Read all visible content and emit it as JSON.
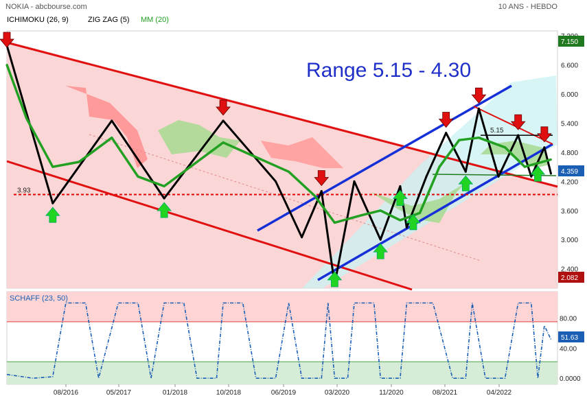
{
  "header": {
    "source": "NOKIA - abcbourse.com",
    "period": "10 ANS - HEBDO"
  },
  "legend": [
    {
      "label": "ICHIMOKU (26, 9)",
      "color": "#000000"
    },
    {
      "label": "ZIG ZAG (5)",
      "color": "#000000"
    },
    {
      "label": "MM (20)",
      "color": "#22a022"
    }
  ],
  "annotation": "Range 5.15 - 4.30",
  "chart_data": [
    {
      "type": "line",
      "title": "",
      "xlabel": "",
      "ylabel": "",
      "x_ticks": [
        "08/2016",
        "05/2017",
        "01/2018",
        "10/2018",
        "06/2019",
        "03/2020",
        "11/2020",
        "08/2021",
        "04/2022"
      ],
      "y_ticks": [
        "7.200",
        "6.600",
        "6.000",
        "5.400",
        "4.800",
        "4.200",
        "3.600",
        "3.000",
        "2.400"
      ],
      "ylim": [
        2.0,
        7.3
      ],
      "grid": false,
      "badges": {
        "high": "7.150",
        "last": "4.359",
        "low": "2.082"
      },
      "levels": [
        {
          "label": "3.93",
          "value": 3.93,
          "color": "#e00000",
          "style": "dashed"
        },
        {
          "label": "5.15",
          "value": 5.15,
          "color": "#000000",
          "style": "solid"
        }
      ],
      "series": [
        {
          "name": "ZIG ZAG (5)",
          "color": "#000000",
          "points": [
            [
              "2016-01",
              7.0
            ],
            [
              "2016-08",
              3.75
            ],
            [
              "2017-05",
              5.45
            ],
            [
              "2018-01",
              3.85
            ],
            [
              "2018-10",
              5.45
            ],
            [
              "2019-06",
              4.2
            ],
            [
              "2019-10",
              3.05
            ],
            [
              "2020-01",
              4.0
            ],
            [
              "2020-03",
              2.08
            ],
            [
              "2020-06",
              4.2
            ],
            [
              "2020-10",
              3.0
            ],
            [
              "2021-01",
              4.1
            ],
            [
              "2021-02",
              3.25
            ],
            [
              "2021-05",
              4.3
            ],
            [
              "2021-08",
              5.2
            ],
            [
              "2021-11",
              4.4
            ],
            [
              "2022-01",
              5.7
            ],
            [
              "2022-04",
              4.3
            ],
            [
              "2022-07",
              5.15
            ],
            [
              "2022-09",
              4.3
            ],
            [
              "2022-11",
              4.9
            ],
            [
              "2022-12",
              4.36
            ]
          ]
        },
        {
          "name": "MM (20)",
          "color": "#22a022",
          "points": [
            [
              "2016-01",
              6.6
            ],
            [
              "2016-04",
              5.5
            ],
            [
              "2016-08",
              4.5
            ],
            [
              "2016-12",
              4.6
            ],
            [
              "2017-05",
              5.1
            ],
            [
              "2017-09",
              4.3
            ],
            [
              "2018-01",
              4.1
            ],
            [
              "2018-06",
              4.6
            ],
            [
              "2018-10",
              5.0
            ],
            [
              "2019-03",
              4.7
            ],
            [
              "2019-08",
              4.4
            ],
            [
              "2019-12",
              3.9
            ],
            [
              "2020-03",
              3.35
            ],
            [
              "2020-07",
              3.5
            ],
            [
              "2020-10",
              3.6
            ],
            [
              "2021-01",
              3.4
            ],
            [
              "2021-04",
              3.55
            ],
            [
              "2021-07",
              4.5
            ],
            [
              "2021-10",
              5.05
            ],
            [
              "2022-01",
              5.1
            ],
            [
              "2022-05",
              4.9
            ],
            [
              "2022-08",
              4.5
            ],
            [
              "2022-12",
              4.65
            ]
          ]
        }
      ],
      "signals": {
        "sell": [
          "2016-01",
          "2018-10",
          "2020-01",
          "2021-08",
          "2022-01",
          "2022-07",
          "2022-11"
        ],
        "buy": [
          "2016-08",
          "2018-01",
          "2020-03",
          "2020-10",
          "2021-01",
          "2021-03",
          "2021-11",
          "2022-10"
        ]
      }
    },
    {
      "type": "line",
      "title": "SCHAFF (23, 50)",
      "y_ticks": [
        "80.00",
        "40.00",
        "0.0000"
      ],
      "ylim": [
        -8,
        115
      ],
      "zones": [
        {
          "from": 75,
          "to": 115,
          "color": "#ffd4d4"
        },
        {
          "from": -8,
          "to": 22,
          "color": "#d7ecd7"
        }
      ],
      "badges": {
        "last": "51.63"
      },
      "series": [
        {
          "name": "SCHAFF (23, 50)",
          "color": "#1a5fb4",
          "points": [
            [
              "2016-01",
              5
            ],
            [
              "2016-05",
              0
            ],
            [
              "2016-08",
              2
            ],
            [
              "2016-10",
              100
            ],
            [
              "2017-01",
              100
            ],
            [
              "2017-03",
              0
            ],
            [
              "2017-06",
              100
            ],
            [
              "2017-09",
              100
            ],
            [
              "2017-11",
              0
            ],
            [
              "2018-01",
              100
            ],
            [
              "2018-04",
              100
            ],
            [
              "2018-06",
              0
            ],
            [
              "2018-09",
              0
            ],
            [
              "2018-10",
              100
            ],
            [
              "2019-01",
              100
            ],
            [
              "2019-03",
              0
            ],
            [
              "2019-06",
              0
            ],
            [
              "2019-08",
              100
            ],
            [
              "2019-10",
              0
            ],
            [
              "2020-01",
              0
            ],
            [
              "2020-02",
              100
            ],
            [
              "2020-03",
              0
            ],
            [
              "2020-05",
              0
            ],
            [
              "2020-06",
              100
            ],
            [
              "2020-09",
              100
            ],
            [
              "2020-10",
              0
            ],
            [
              "2021-01",
              0
            ],
            [
              "2021-02",
              100
            ],
            [
              "2021-06",
              100
            ],
            [
              "2021-09",
              0
            ],
            [
              "2021-11",
              0
            ],
            [
              "2021-12",
              100
            ],
            [
              "2022-02",
              0
            ],
            [
              "2022-05",
              0
            ],
            [
              "2022-07",
              100
            ],
            [
              "2022-09",
              100
            ],
            [
              "2022-10",
              0
            ],
            [
              "2022-11",
              70
            ],
            [
              "2022-12",
              51.63
            ]
          ]
        }
      ]
    }
  ]
}
